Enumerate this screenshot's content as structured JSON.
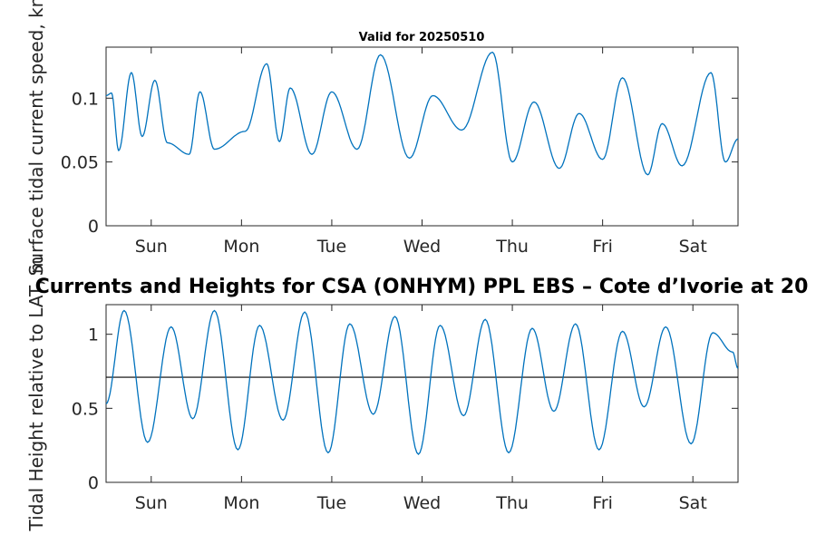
{
  "chart_data": [
    {
      "type": "line",
      "title": "Valid for 20250510",
      "ylabel": "Surface tidal current speed, kn",
      "xlim": [
        0,
        7
      ],
      "ylim": [
        0,
        0.14
      ],
      "yticks": [
        0,
        0.05,
        0.1
      ],
      "ytick_labels": [
        "0",
        "0.05",
        "0.1"
      ],
      "xticks": [
        0.5,
        1.5,
        2.5,
        3.5,
        4.5,
        5.5,
        6.5
      ],
      "xtick_labels": [
        "Sun",
        "Mon",
        "Tue",
        "Wed",
        "Thu",
        "Fri",
        "Sat"
      ],
      "line_color": "#0072BD",
      "series": [
        {
          "x": [
            0.0,
            0.06,
            0.14,
            0.28,
            0.4,
            0.54,
            0.68,
            0.92,
            1.04,
            1.2,
            1.54,
            1.78,
            1.92,
            2.04,
            2.28,
            2.5,
            2.78,
            3.04,
            3.36,
            3.62,
            3.94,
            4.28,
            4.5,
            4.74,
            5.02,
            5.24,
            5.5,
            5.72,
            6.0,
            6.16,
            6.38,
            6.7,
            6.86,
            7.0
          ],
          "y": [
            0.102,
            0.104,
            0.059,
            0.12,
            0.07,
            0.114,
            0.065,
            0.056,
            0.105,
            0.06,
            0.074,
            0.127,
            0.066,
            0.108,
            0.056,
            0.105,
            0.06,
            0.134,
            0.053,
            0.102,
            0.075,
            0.136,
            0.05,
            0.097,
            0.045,
            0.088,
            0.052,
            0.116,
            0.04,
            0.08,
            0.047,
            0.12,
            0.05,
            0.068
          ]
        }
      ]
    },
    {
      "type": "line",
      "title": "Currents and Heights for CSA (ONHYM) PPL EBS  – Cote d’Ivorie at 20",
      "ylabel": "Tidal Height relative to LAT, m",
      "xlim": [
        0,
        7
      ],
      "ylim": [
        0,
        1.2
      ],
      "yticks": [
        0,
        0.5,
        1
      ],
      "ytick_labels": [
        "0",
        "0.5",
        "1"
      ],
      "xticks": [
        0.5,
        1.5,
        2.5,
        3.5,
        4.5,
        5.5,
        6.5
      ],
      "xtick_labels": [
        "Sun",
        "Mon",
        "Tue",
        "Wed",
        "Thu",
        "Fri",
        "Sat"
      ],
      "line_color": "#0072BD",
      "reference_line": 0.71,
      "reference_color": "#000000",
      "series": [
        {
          "x": [
            0.0,
            0.2,
            0.46,
            0.72,
            0.96,
            1.2,
            1.46,
            1.7,
            1.96,
            2.2,
            2.46,
            2.7,
            2.96,
            3.2,
            3.46,
            3.7,
            3.96,
            4.2,
            4.46,
            4.72,
            4.96,
            5.2,
            5.46,
            5.72,
            5.96,
            6.2,
            6.48,
            6.72,
            6.94,
            7.0
          ],
          "y": [
            0.53,
            1.16,
            0.27,
            1.05,
            0.43,
            1.16,
            0.22,
            1.06,
            0.42,
            1.15,
            0.2,
            1.07,
            0.46,
            1.12,
            0.19,
            1.06,
            0.45,
            1.1,
            0.2,
            1.04,
            0.48,
            1.07,
            0.22,
            1.02,
            0.51,
            1.05,
            0.26,
            1.01,
            0.88,
            0.77
          ]
        }
      ]
    }
  ]
}
